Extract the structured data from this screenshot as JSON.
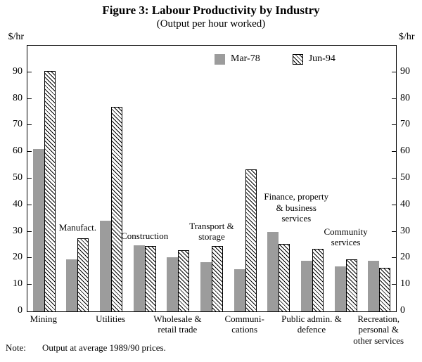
{
  "axis": {
    "unit_left": "$/hr",
    "unit_right": "$/hr"
  },
  "note": {
    "label": "Note:",
    "text": "Output at average 1989/90 prices."
  },
  "chart_data": {
    "type": "bar",
    "title": "Figure 3: Labour Productivity by Industry",
    "subtitle": "(Output per hour worked)",
    "ylabel": "$/hr",
    "ylim": [
      0,
      100
    ],
    "yticks": [
      0,
      10,
      20,
      30,
      40,
      50,
      60,
      70,
      80,
      90
    ],
    "grid": false,
    "legend_position": "inside-top-center",
    "categories": [
      {
        "name": "Mining",
        "label": "Mining",
        "label_position": "below"
      },
      {
        "name": "Manufacturing",
        "label": "Manufact.",
        "label_position": "inside",
        "label_y": 29.5,
        "label_dx": 0
      },
      {
        "name": "Utilities",
        "label": "Utilities",
        "label_position": "below"
      },
      {
        "name": "Construction",
        "label": "Construction",
        "label_position": "inside",
        "label_y": 26.5,
        "label_dx": 0
      },
      {
        "name": "Wholesale & retail trade",
        "label": "Wholesale &\nretail trade",
        "label_position": "below"
      },
      {
        "name": "Transport & storage",
        "label": "Transport &\nstorage",
        "label_position": "inside",
        "label_y": 26,
        "label_dx": 0
      },
      {
        "name": "Communications",
        "label": "Communi-\ncations",
        "label_position": "below"
      },
      {
        "name": "Finance, property & business services",
        "label": "Finance, property\n& business\nservices",
        "label_position": "inside",
        "label_y": 33,
        "label_dx": 25
      },
      {
        "name": "Public admin. & defence",
        "label": "Public admin. &\ndefence",
        "label_position": "below"
      },
      {
        "name": "Community services",
        "label": "Community\nservices",
        "label_position": "inside",
        "label_y": 24,
        "label_dx": 0
      },
      {
        "name": "Recreation, personal & other services",
        "label": "Recreation,\npersonal &\nother services",
        "label_position": "below"
      }
    ],
    "series": [
      {
        "name": "Mar-78",
        "style": "solid",
        "color": "#9c9c9c",
        "values": [
          61,
          19.5,
          34,
          25,
          20.5,
          18.5,
          16,
          30,
          19,
          17,
          19
        ]
      },
      {
        "name": "Jun-94",
        "style": "hatched",
        "color": "#ffffff",
        "hatch_color": "#000000",
        "values": [
          90.5,
          27.5,
          77,
          24.5,
          23,
          24.5,
          53.5,
          25.5,
          23.5,
          19.5,
          16.5
        ]
      }
    ]
  }
}
